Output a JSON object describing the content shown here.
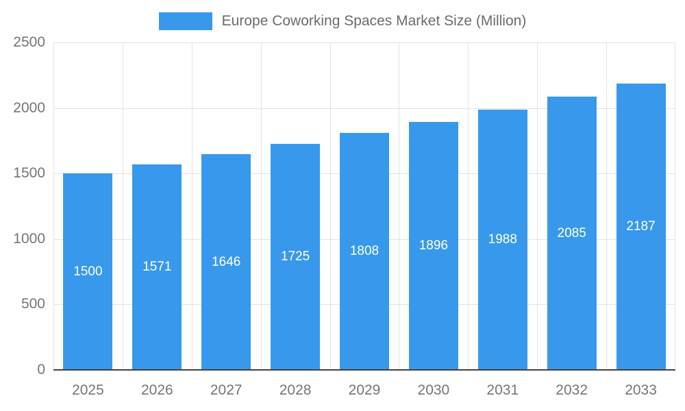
{
  "colors": {
    "bar": "#3899EC",
    "grid": "#e2e2e2",
    "axis": "#424242",
    "tick_text": "#757575",
    "title_text": "#6b6b6b",
    "value_label_text": "#ffffff"
  },
  "chart_data": {
    "type": "bar",
    "title": "Europe Coworking Spaces Market Size (Million)",
    "categories": [
      "2025",
      "2026",
      "2027",
      "2028",
      "2029",
      "2030",
      "2031",
      "2032",
      "2033"
    ],
    "values": [
      1500,
      1571,
      1646,
      1725,
      1808,
      1896,
      1988,
      2085,
      2187
    ],
    "xlabel": "",
    "ylabel": "",
    "ylim": [
      0,
      2500
    ],
    "yticks": [
      0,
      500,
      1000,
      1500,
      2000,
      2500
    ],
    "grid": true,
    "legend_position": "top",
    "value_labels": "inside-center"
  }
}
